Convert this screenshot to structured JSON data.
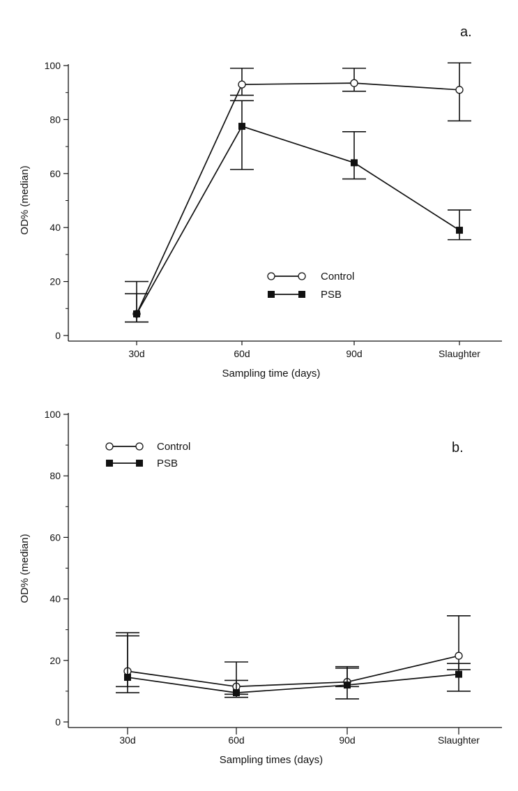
{
  "chart_data": [
    {
      "type": "line",
      "panel_label": "a.",
      "categories": [
        "30d",
        "60d",
        "90d",
        "Slaughter"
      ],
      "xlabel": "Sampling time (days)",
      "ylabel": "OD% (median)",
      "ylim": [
        0,
        100
      ],
      "yticks": [
        0,
        20,
        40,
        60,
        80,
        100
      ],
      "grid": false,
      "legend_position": "center",
      "series": [
        {
          "name": "Control",
          "marker": "open-circle",
          "values": [
            8,
            93,
            93.5,
            91
          ],
          "error_low": [
            5,
            89,
            90.5,
            79.5
          ],
          "error_high": [
            15.5,
            99,
            99,
            101
          ]
        },
        {
          "name": "PSB",
          "marker": "filled-square",
          "values": [
            8,
            77.5,
            64,
            39
          ],
          "error_low": [
            5,
            61.5,
            58,
            35.5
          ],
          "error_high": [
            20,
            87,
            75.5,
            46.5
          ]
        }
      ]
    },
    {
      "type": "line",
      "panel_label": "b.",
      "categories": [
        "30d",
        "60d",
        "90d",
        "Slaughter"
      ],
      "xlabel": "Sampling times (days)",
      "ylabel": "OD% (median)",
      "ylim": [
        0,
        100
      ],
      "yticks": [
        0,
        20,
        40,
        60,
        80,
        100
      ],
      "grid": false,
      "legend_position": "top-left",
      "series": [
        {
          "name": "Control",
          "marker": "open-circle",
          "values": [
            16.5,
            11.5,
            13,
            21.5
          ],
          "error_low": [
            11.5,
            9,
            11.5,
            17
          ],
          "error_high": [
            29,
            13.5,
            17.5,
            34.5
          ]
        },
        {
          "name": "PSB",
          "marker": "filled-square",
          "values": [
            14.5,
            9.5,
            12,
            15.5
          ],
          "error_low": [
            9.5,
            8,
            7.5,
            10
          ],
          "error_high": [
            28,
            19.5,
            18,
            19
          ]
        }
      ]
    }
  ]
}
